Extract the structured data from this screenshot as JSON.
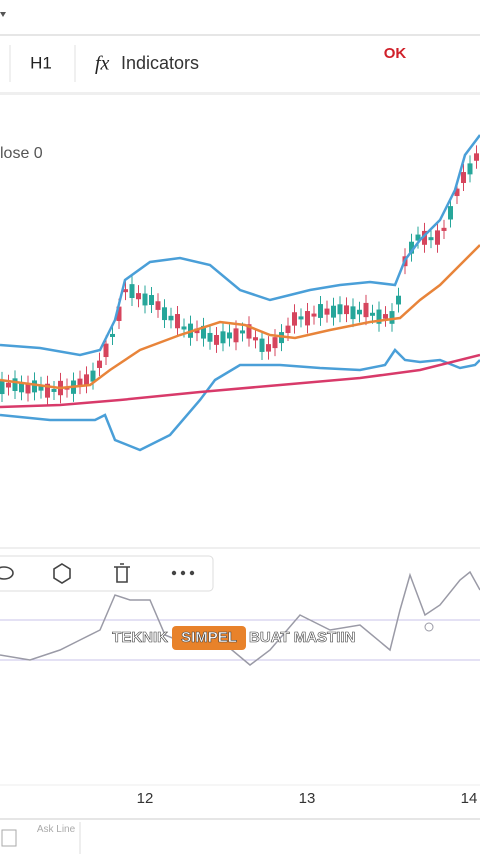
{
  "toolbar": {
    "timeframe": "H1",
    "indicators": "Indicators",
    "logo": "OK"
  },
  "chart": {
    "legend": "lose 0",
    "x_labels": [
      "12",
      "13",
      "14"
    ]
  },
  "caption": {
    "before": "TEKNIK",
    "highlight": "SIMPEL",
    "after": "BUAT MASTIIN"
  },
  "bottom_bar": {
    "item": "Ask Line"
  }
}
